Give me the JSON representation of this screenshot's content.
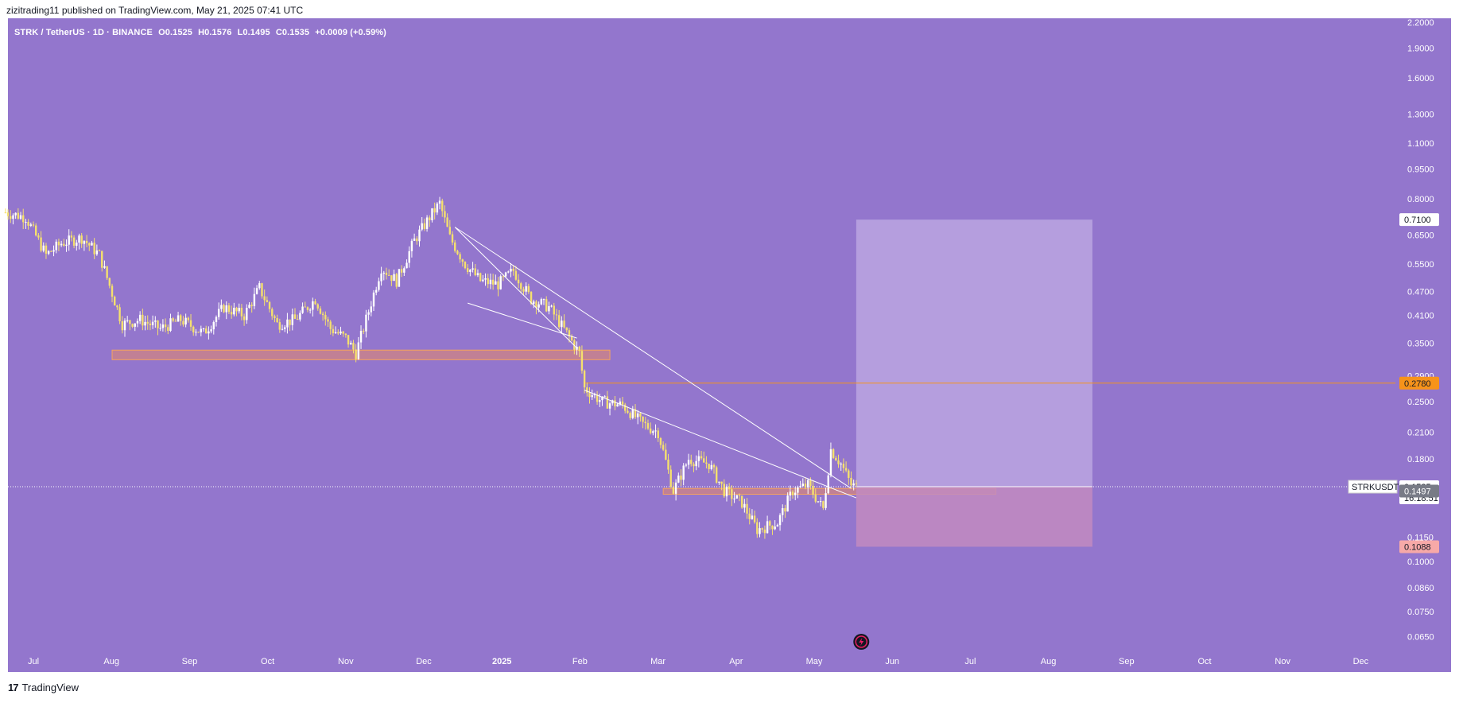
{
  "header": {
    "published": "zizitrading11 published on TradingView.com, May 21, 2025 07:41 UTC"
  },
  "symbol_info": {
    "name": "STRK / TetherUS · 1D · BINANCE",
    "open": "O0.1525",
    "high": "H0.1576",
    "low": "L0.1495",
    "close": "C0.1535",
    "change": "+0.0009 (+0.59%)"
  },
  "footer": {
    "logo_mark": "17",
    "logo_text": "TradingView"
  },
  "colors": {
    "background": "#9376cd",
    "candle": "#f5e06e",
    "candle_alt": "#ffffff",
    "zone_fill": "#e0876f",
    "zone_border": "#f7a35c",
    "target_box": "#bba6e0",
    "stop_box": "#c28bbf",
    "entry_line": "#f7931a",
    "last_price_badge": "#ffffff",
    "low_badge": "#787b86",
    "stop_badge": "#f7a9a8"
  },
  "chart_data": {
    "type": "candlestick",
    "symbol": "STRKUSDT",
    "scale": "log",
    "x_axis_ticks": [
      "Jul",
      "Aug",
      "Sep",
      "Oct",
      "Nov",
      "Dec",
      "2025",
      "Feb",
      "Mar",
      "Apr",
      "May",
      "Jun",
      "Jul",
      "Aug",
      "Sep",
      "Oct",
      "Nov",
      "Dec"
    ],
    "y_axis_ticks": [
      "2.2000",
      "1.9000",
      "1.6000",
      "1.3000",
      "1.1000",
      "0.9500",
      "0.8000",
      "0.6500",
      "0.5500",
      "0.4700",
      "0.4100",
      "0.3500",
      "0.2900",
      "0.2500",
      "0.2100",
      "0.1800",
      "0.1150",
      "0.1000",
      "0.0860",
      "0.0750",
      "0.0650"
    ],
    "y_axis_tick_values": [
      2.2,
      1.9,
      1.6,
      1.3,
      1.1,
      0.95,
      0.8,
      0.65,
      0.55,
      0.47,
      0.41,
      0.35,
      0.29,
      0.25,
      0.21,
      0.18,
      0.115,
      0.1,
      0.086,
      0.075,
      0.065
    ],
    "ylim": [
      0.06,
      2.3
    ],
    "price_path": [
      {
        "date": "2024-06-20",
        "close": 0.74
      },
      {
        "date": "2024-06-28",
        "close": 0.72
      },
      {
        "date": "2024-07-06",
        "close": 0.58
      },
      {
        "date": "2024-07-12",
        "close": 0.62
      },
      {
        "date": "2024-07-20",
        "close": 0.64
      },
      {
        "date": "2024-07-27",
        "close": 0.58
      },
      {
        "date": "2024-08-05",
        "close": 0.39
      },
      {
        "date": "2024-08-12",
        "close": 0.4
      },
      {
        "date": "2024-08-20",
        "close": 0.38
      },
      {
        "date": "2024-08-28",
        "close": 0.4
      },
      {
        "date": "2024-09-06",
        "close": 0.37
      },
      {
        "date": "2024-09-14",
        "close": 0.43
      },
      {
        "date": "2024-09-22",
        "close": 0.41
      },
      {
        "date": "2024-09-28",
        "close": 0.48
      },
      {
        "date": "2024-10-05",
        "close": 0.39
      },
      {
        "date": "2024-10-12",
        "close": 0.4
      },
      {
        "date": "2024-10-20",
        "close": 0.45
      },
      {
        "date": "2024-10-26",
        "close": 0.38
      },
      {
        "date": "2024-11-01",
        "close": 0.36
      },
      {
        "date": "2024-11-05",
        "close": 0.33
      },
      {
        "date": "2024-11-10",
        "close": 0.42
      },
      {
        "date": "2024-11-15",
        "close": 0.54
      },
      {
        "date": "2024-11-21",
        "close": 0.5
      },
      {
        "date": "2024-11-28",
        "close": 0.63
      },
      {
        "date": "2024-12-04",
        "close": 0.72
      },
      {
        "date": "2024-12-08",
        "close": 0.78
      },
      {
        "date": "2024-12-12",
        "close": 0.64
      },
      {
        "date": "2024-12-18",
        "close": 0.55
      },
      {
        "date": "2024-12-24",
        "close": 0.5
      },
      {
        "date": "2024-12-31",
        "close": 0.49
      },
      {
        "date": "2025-01-06",
        "close": 0.53
      },
      {
        "date": "2025-01-13",
        "close": 0.45
      },
      {
        "date": "2025-01-20",
        "close": 0.43
      },
      {
        "date": "2025-01-27",
        "close": 0.37
      },
      {
        "date": "2025-02-01",
        "close": 0.33
      },
      {
        "date": "2025-02-03",
        "close": 0.27
      },
      {
        "date": "2025-02-10",
        "close": 0.25
      },
      {
        "date": "2025-02-18",
        "close": 0.245
      },
      {
        "date": "2025-02-26",
        "close": 0.22
      },
      {
        "date": "2025-03-04",
        "close": 0.21
      },
      {
        "date": "2025-03-10",
        "close": 0.15
      },
      {
        "date": "2025-03-16",
        "close": 0.18
      },
      {
        "date": "2025-03-24",
        "close": 0.175
      },
      {
        "date": "2025-03-30",
        "close": 0.15
      },
      {
        "date": "2025-04-06",
        "close": 0.14
      },
      {
        "date": "2025-04-12",
        "close": 0.12
      },
      {
        "date": "2025-04-20",
        "close": 0.125
      },
      {
        "date": "2025-04-26",
        "close": 0.15
      },
      {
        "date": "2025-05-02",
        "close": 0.155
      },
      {
        "date": "2025-05-08",
        "close": 0.135
      },
      {
        "date": "2025-05-11",
        "close": 0.19
      },
      {
        "date": "2025-05-15",
        "close": 0.175
      },
      {
        "date": "2025-05-19",
        "close": 0.155
      },
      {
        "date": "2025-05-21",
        "close": 0.1535
      }
    ],
    "support_zones": [
      {
        "start": "2024-08-01",
        "end": "2025-02-13",
        "low": 0.318,
        "high": 0.336
      },
      {
        "start": "2025-03-06",
        "end": "2025-07-15",
        "low": 0.147,
        "high": 0.152
      }
    ],
    "trendlines": [
      {
        "from": {
          "date": "2024-12-14",
          "price": 0.68
        },
        "to": {
          "date": "2025-05-19",
          "price": 0.152
        }
      },
      {
        "from": {
          "date": "2024-12-14",
          "price": 0.68
        },
        "to": {
          "date": "2025-01-31",
          "price": 0.34
        }
      },
      {
        "from": {
          "date": "2024-12-19",
          "price": 0.44
        },
        "to": {
          "date": "2025-01-31",
          "price": 0.36
        }
      },
      {
        "from": {
          "date": "2025-02-03",
          "price": 0.267
        },
        "to": {
          "date": "2025-05-21",
          "price": 0.144
        }
      }
    ],
    "position": {
      "start": "2025-05-21",
      "end": "2025-08-22",
      "entry": 0.1535,
      "target": 0.71,
      "stop": 0.1088,
      "entry_line_price": 0.278
    },
    "price_labels": [
      {
        "text": "0.7100",
        "price": 0.71,
        "style": "target"
      },
      {
        "text": "0.2780",
        "price": 0.278,
        "style": "entry"
      },
      {
        "text": "0.1535",
        "price": 0.1535,
        "style": "last"
      },
      {
        "text": "16:18:51",
        "price": 0.1535,
        "style": "countdown"
      },
      {
        "text": "0.1497",
        "price": 0.1497,
        "style": "low"
      },
      {
        "text": "0.1088",
        "price": 0.1088,
        "style": "stop"
      }
    ],
    "symbol_label": "STRKUSDT"
  }
}
